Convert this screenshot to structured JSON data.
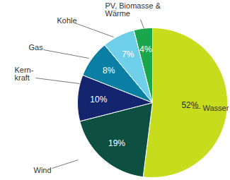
{
  "chart_data": {
    "type": "pie",
    "categories": [
      "Wasser",
      "Wind",
      "Kern-\nkraft",
      "Gas",
      "Kohle",
      "PV, Biomasse &\nWärme"
    ],
    "values": [
      52,
      19,
      10,
      8,
      7,
      4
    ],
    "value_labels": [
      "52%",
      "19%",
      "10%",
      "8%",
      "7%",
      "4%"
    ],
    "colors": [
      "#c8dc1e",
      "#0d4f40",
      "#14246e",
      "#0a7fa3",
      "#6fcfe8",
      "#1aa64b"
    ],
    "data_labels": true
  }
}
